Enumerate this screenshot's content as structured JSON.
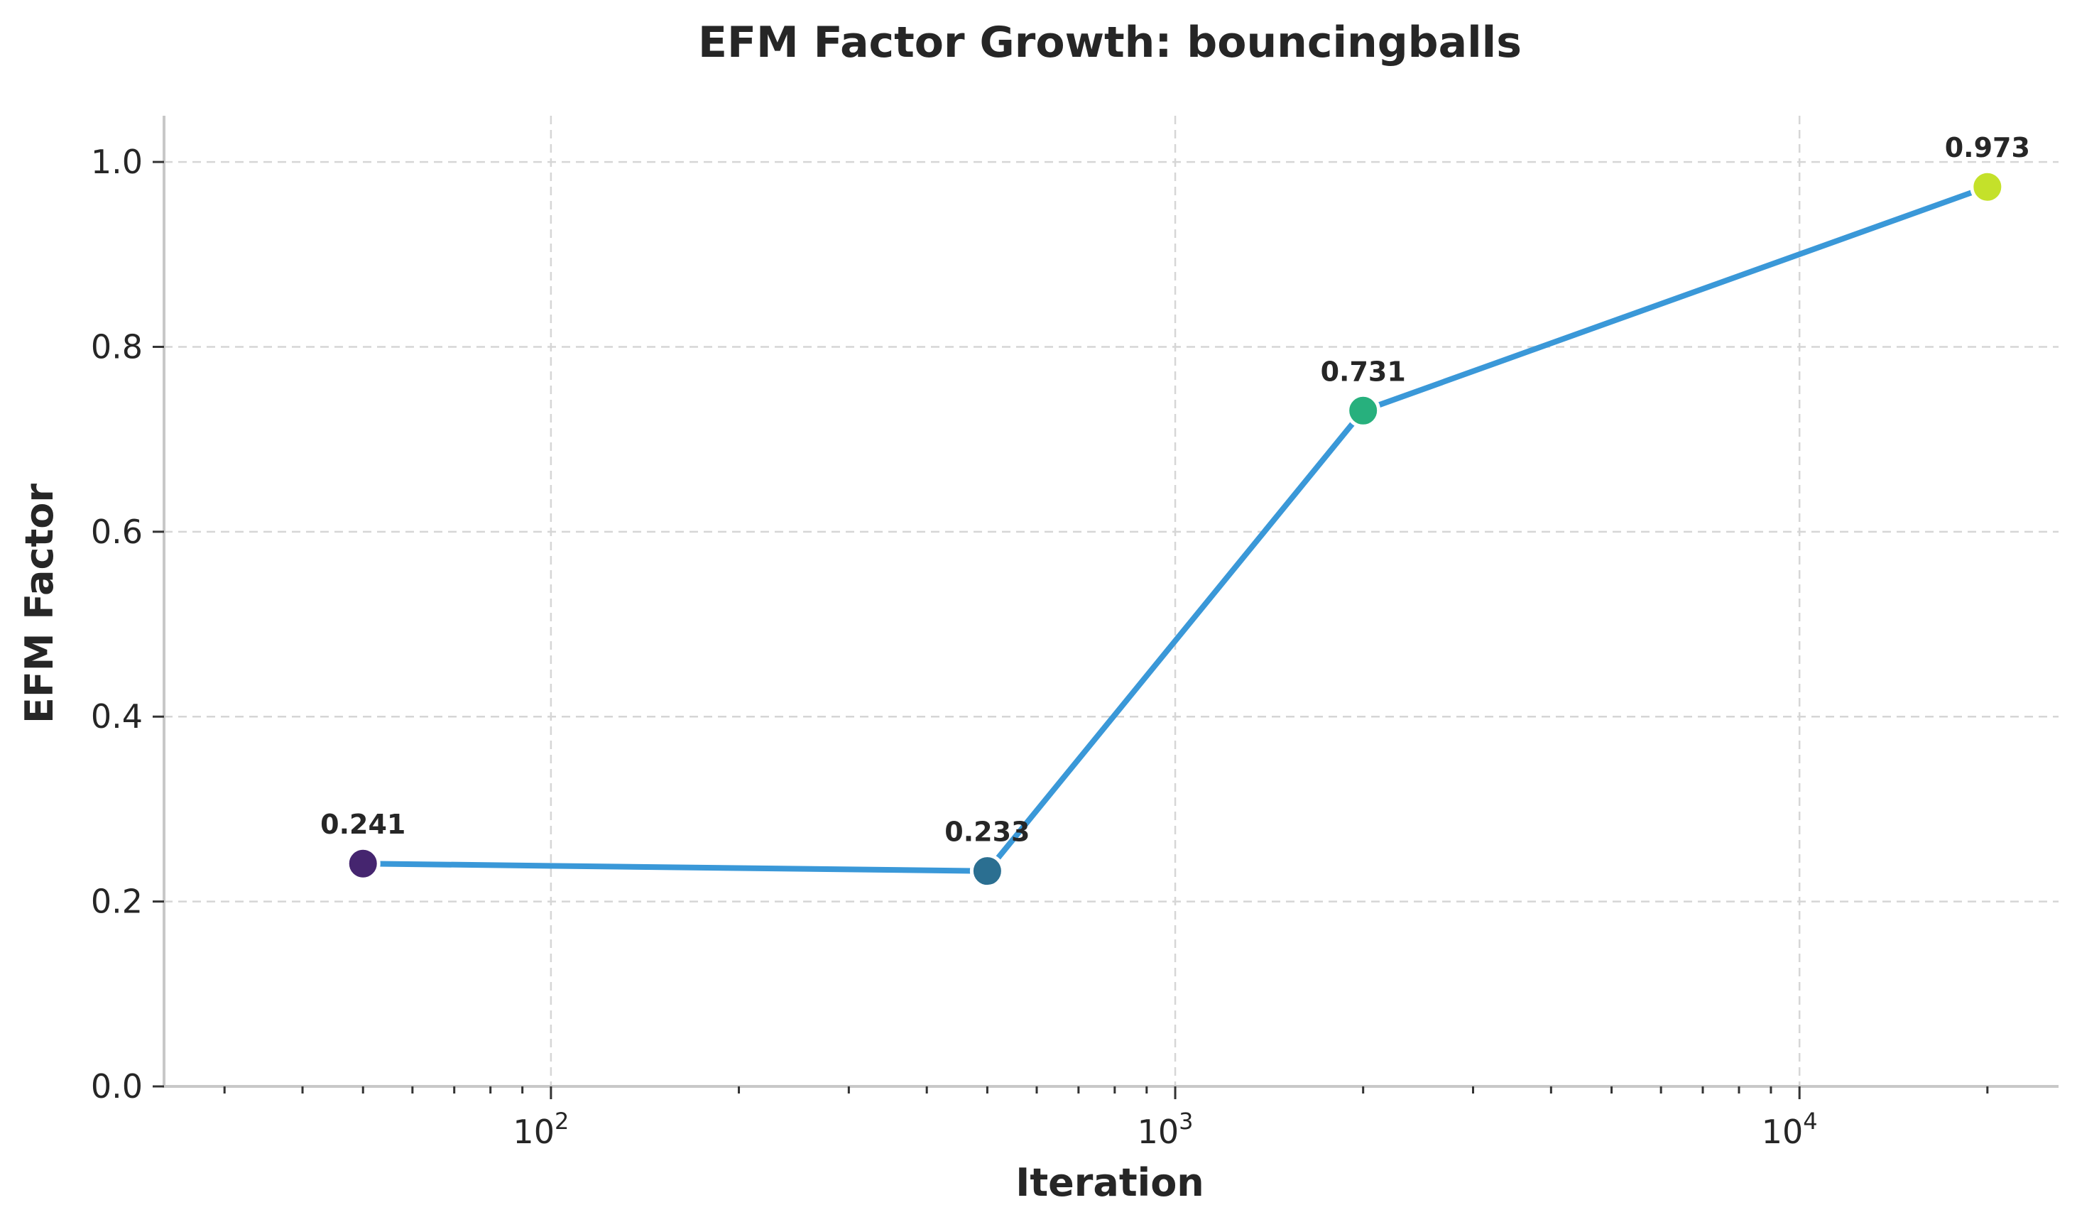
{
  "chart_data": {
    "type": "line",
    "title": "EFM Factor Growth: bouncingballs",
    "xlabel": "Iteration",
    "ylabel": "EFM Factor",
    "xscale": "log",
    "xlim": [
      24,
      26000
    ],
    "ylim": [
      0,
      1.05
    ],
    "y_ticks": [
      "0.0",
      "0.2",
      "0.4",
      "0.6",
      "0.8",
      "1.0"
    ],
    "x_ticks": [
      {
        "value": 100,
        "base": "10",
        "exp": "2"
      },
      {
        "value": 1000,
        "base": "10",
        "exp": "3"
      },
      {
        "value": 10000,
        "base": "10",
        "exp": "4"
      }
    ],
    "grid": true,
    "line_color": "#3a98d8",
    "series": [
      {
        "x": [
          50,
          500,
          2000,
          20000
        ],
        "values": [
          0.241,
          0.233,
          0.731,
          0.973
        ],
        "labels": [
          "0.241",
          "0.233",
          "0.731",
          "0.973"
        ],
        "point_colors": [
          "#45256f",
          "#2b6f91",
          "#27b07d",
          "#c4e12a"
        ]
      }
    ]
  }
}
